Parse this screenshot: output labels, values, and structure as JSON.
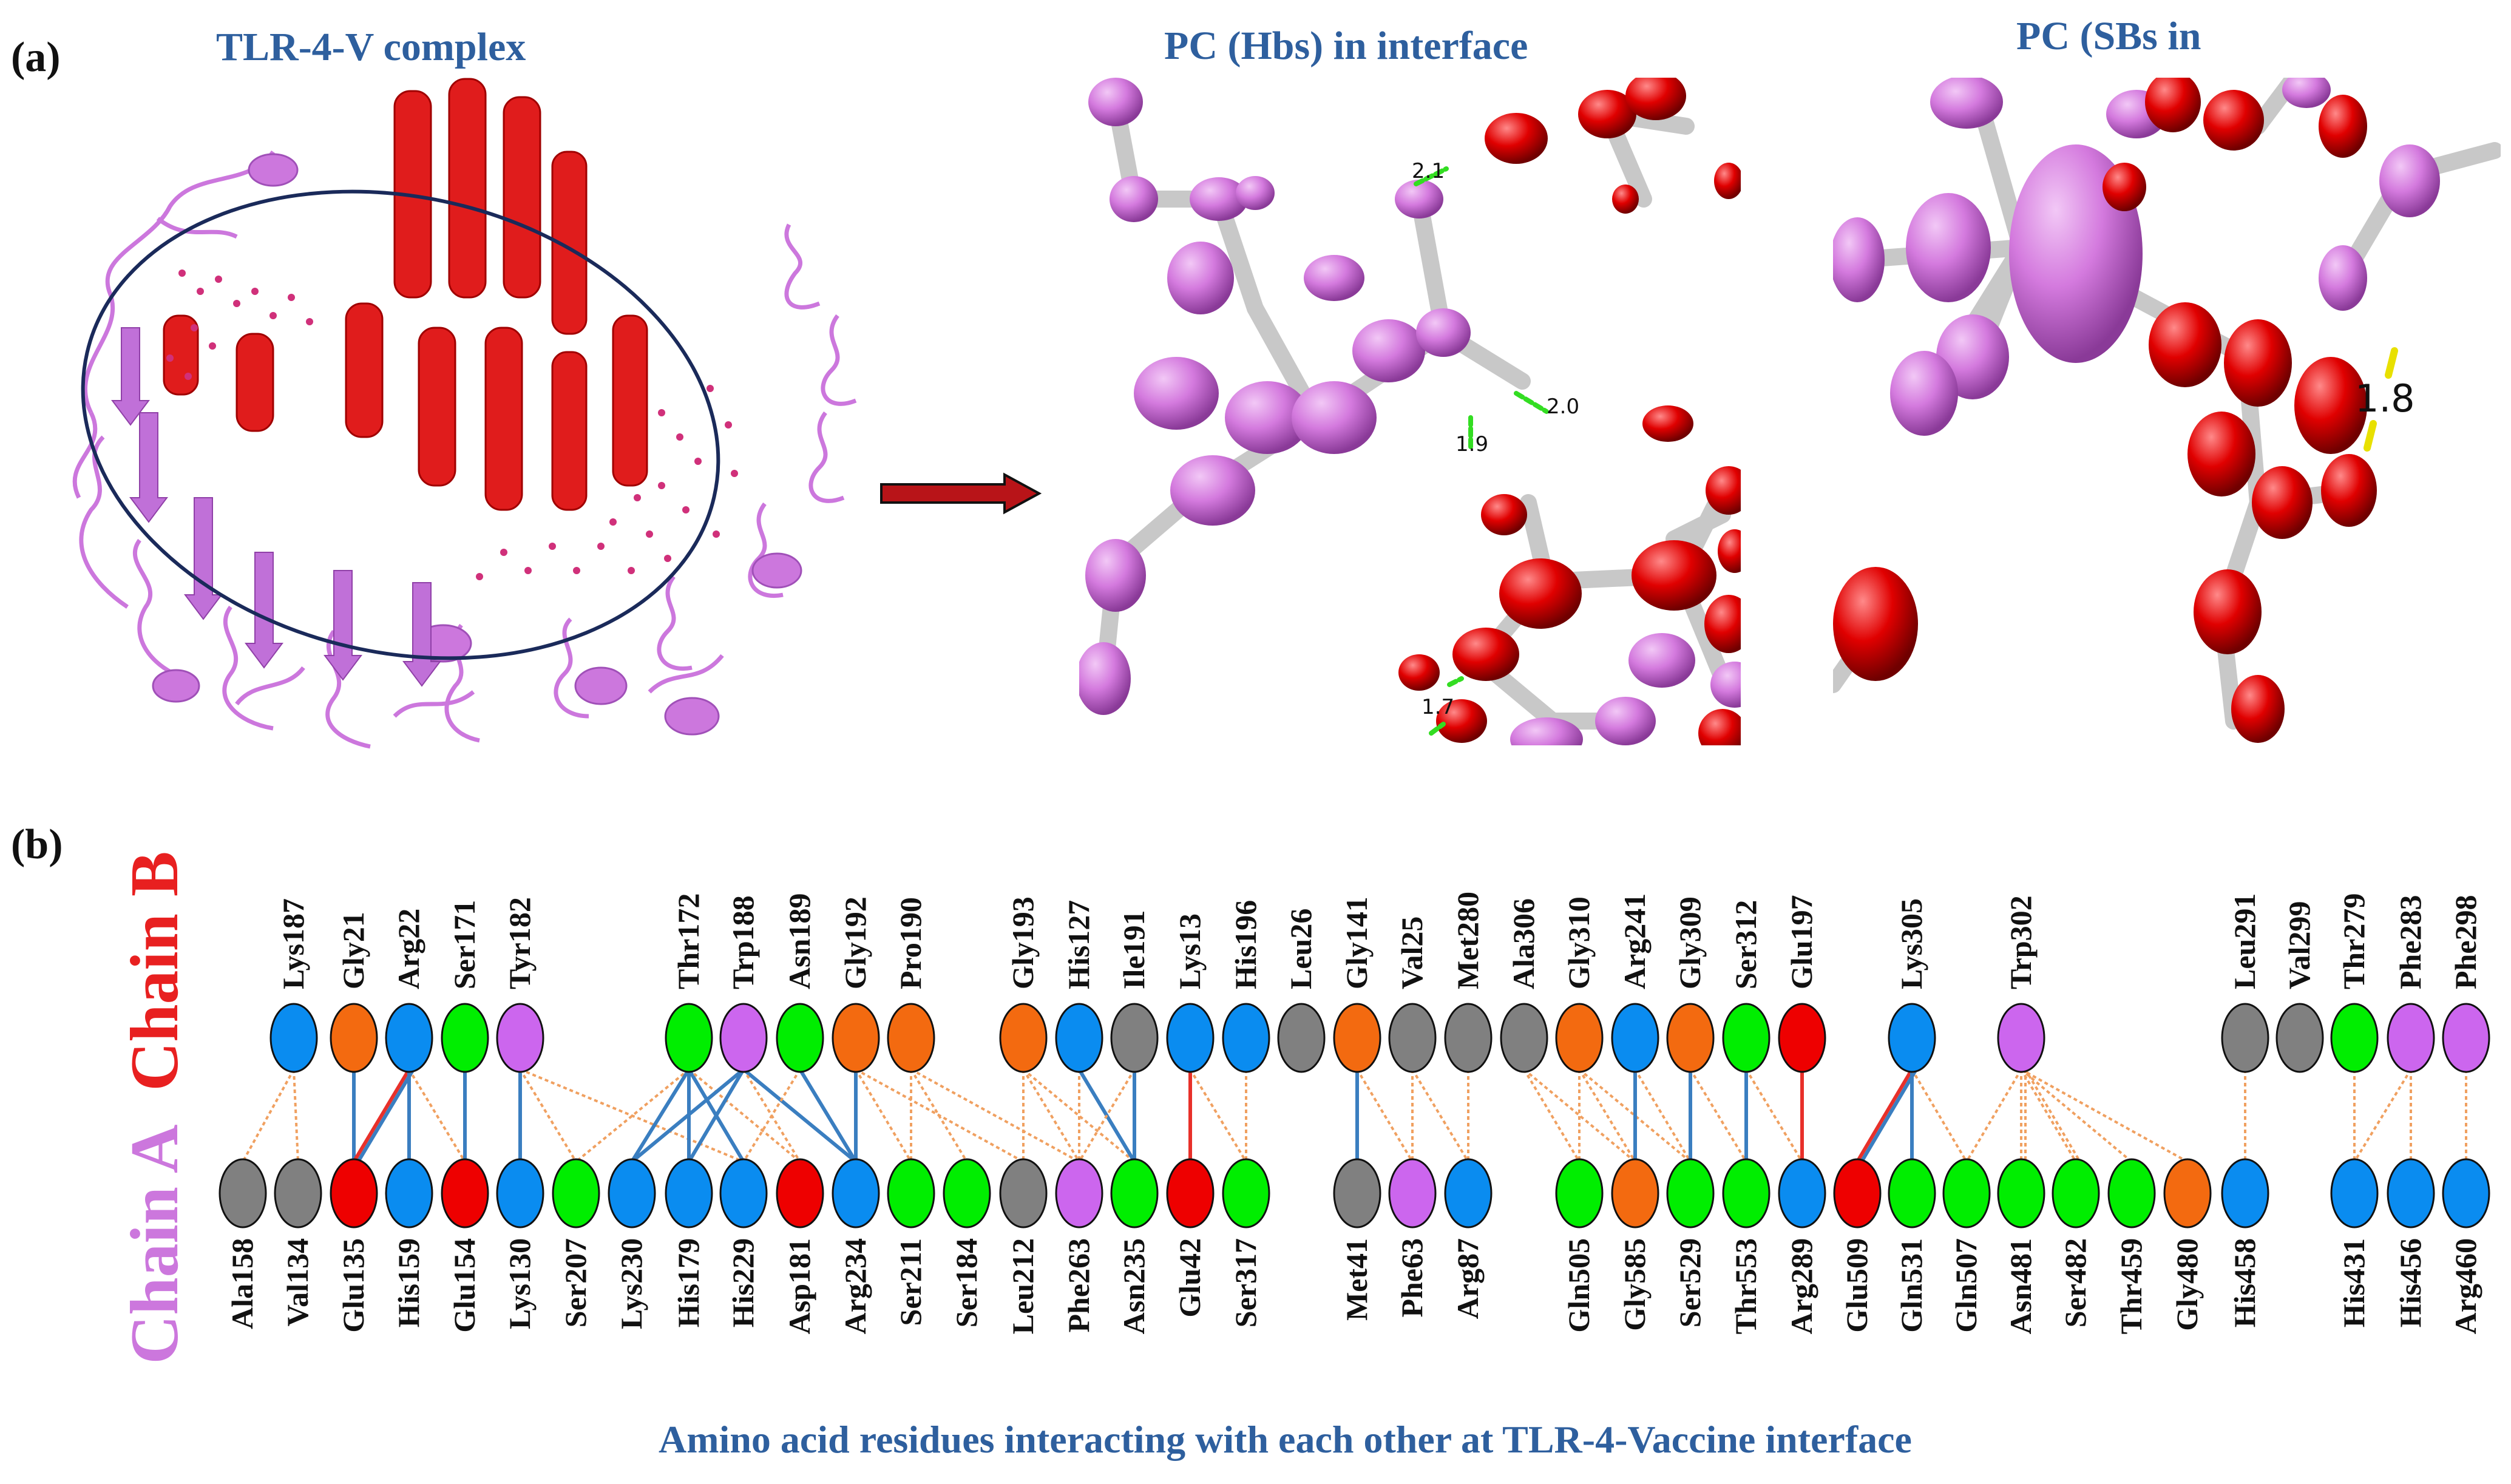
{
  "panel_a": {
    "letter": "(a)",
    "complex_title": "TLR-4-V complex",
    "hbs_title": "PC (Hbs) in interface",
    "sbs_title": "PC (SBs in",
    "hbs_distances": [
      "2.1",
      "2.0",
      "1.9",
      "1.7"
    ],
    "sbs_distance": "1.8"
  },
  "panel_b": {
    "letter": "(b)",
    "chain_b_label": "Chain B",
    "chain_a_label": "Chain A",
    "caption": "Amino acid residues interacting with each other  at TLR-4-Vaccine interface",
    "colors": {
      "chain_b_text": "#e82020",
      "chain_a_text": "#cc77dd",
      "blue": "#0a8cf0",
      "orange": "#f36a10",
      "green": "#00ee00",
      "purple": "#cc66ee",
      "gray": "#808080",
      "red": "#ee0000",
      "salt_bridge": "#e8302a",
      "h_bond": "#3a7ec0",
      "contact": "#f0a060"
    },
    "chain_b": [
      {
        "name": "Lys187",
        "color": "blue"
      },
      {
        "name": "Gly21",
        "color": "orange"
      },
      {
        "name": "Arg22",
        "color": "blue"
      },
      {
        "name": "Ser171",
        "color": "green"
      },
      {
        "name": "Tyr182",
        "color": "purple"
      },
      {
        "name": "Thr172",
        "color": "green"
      },
      {
        "name": "Trp188",
        "color": "purple"
      },
      {
        "name": "Asn189",
        "color": "green"
      },
      {
        "name": "Gly192",
        "color": "orange"
      },
      {
        "name": "Pro190",
        "color": "orange"
      },
      {
        "name": "Gly193",
        "color": "orange"
      },
      {
        "name": "His127",
        "color": "blue"
      },
      {
        "name": "Ile191",
        "color": "gray"
      },
      {
        "name": "Lys13",
        "color": "blue"
      },
      {
        "name": "His196",
        "color": "blue"
      },
      {
        "name": "Leu26",
        "color": "gray"
      },
      {
        "name": "Gly141",
        "color": "orange"
      },
      {
        "name": "Val25",
        "color": "gray"
      },
      {
        "name": "Met280",
        "color": "gray"
      },
      {
        "name": "Ala306",
        "color": "gray"
      },
      {
        "name": "Gly310",
        "color": "orange"
      },
      {
        "name": "Arg241",
        "color": "blue"
      },
      {
        "name": "Gly309",
        "color": "orange"
      },
      {
        "name": "Ser312",
        "color": "green"
      },
      {
        "name": "Glu197",
        "color": "red"
      },
      {
        "name": "Lys305",
        "color": "blue"
      },
      {
        "name": "Trp302",
        "color": "purple"
      },
      {
        "name": "Leu291",
        "color": "gray"
      },
      {
        "name": "Val299",
        "color": "gray"
      },
      {
        "name": "Thr279",
        "color": "green"
      },
      {
        "name": "Phe283",
        "color": "purple"
      },
      {
        "name": "Phe298",
        "color": "purple"
      }
    ],
    "chain_a": [
      {
        "name": "Ala158",
        "color": "gray"
      },
      {
        "name": "Val134",
        "color": "gray"
      },
      {
        "name": "Glu135",
        "color": "red"
      },
      {
        "name": "His159",
        "color": "blue"
      },
      {
        "name": "Glu154",
        "color": "red"
      },
      {
        "name": "Lys130",
        "color": "blue"
      },
      {
        "name": "Ser207",
        "color": "green"
      },
      {
        "name": "Lys230",
        "color": "blue"
      },
      {
        "name": "His179",
        "color": "blue"
      },
      {
        "name": "His229",
        "color": "blue"
      },
      {
        "name": "Asp181",
        "color": "red"
      },
      {
        "name": "Arg234",
        "color": "blue"
      },
      {
        "name": "Ser211",
        "color": "green"
      },
      {
        "name": "Ser184",
        "color": "green"
      },
      {
        "name": "Leu212",
        "color": "gray"
      },
      {
        "name": "Phe263",
        "color": "purple"
      },
      {
        "name": "Asn235",
        "color": "green"
      },
      {
        "name": "Glu42",
        "color": "red"
      },
      {
        "name": "Ser317",
        "color": "green"
      },
      {
        "name": "Met41",
        "color": "gray"
      },
      {
        "name": "Phe63",
        "color": "purple"
      },
      {
        "name": "Arg87",
        "color": "blue"
      },
      {
        "name": "Gln505",
        "color": "green"
      },
      {
        "name": "Gly585",
        "color": "orange"
      },
      {
        "name": "Ser529",
        "color": "green"
      },
      {
        "name": "Thr553",
        "color": "green"
      },
      {
        "name": "Arg289",
        "color": "blue"
      },
      {
        "name": "Glu509",
        "color": "red"
      },
      {
        "name": "Gln531",
        "color": "green"
      },
      {
        "name": "Gln507",
        "color": "green"
      },
      {
        "name": "Asn481",
        "color": "green"
      },
      {
        "name": "Ser482",
        "color": "green"
      },
      {
        "name": "Thr459",
        "color": "green"
      },
      {
        "name": "Gly480",
        "color": "orange"
      },
      {
        "name": "His458",
        "color": "blue"
      },
      {
        "name": "His431",
        "color": "blue"
      },
      {
        "name": "His456",
        "color": "blue"
      },
      {
        "name": "Arg460",
        "color": "blue"
      }
    ],
    "interactions": [
      {
        "b": 0,
        "a": 1,
        "type": "contact"
      },
      {
        "b": 0,
        "a": 0,
        "type": "contact"
      },
      {
        "b": 1,
        "a": 2,
        "type": "h_bond"
      },
      {
        "b": 2,
        "a": 2,
        "type": "salt_bridge"
      },
      {
        "b": 2,
        "a": 2,
        "type": "h_bond"
      },
      {
        "b": 2,
        "a": 3,
        "type": "h_bond"
      },
      {
        "b": 2,
        "a": 4,
        "type": "contact"
      },
      {
        "b": 3,
        "a": 4,
        "type": "h_bond"
      },
      {
        "b": 4,
        "a": 5,
        "type": "h_bond"
      },
      {
        "b": 4,
        "a": 6,
        "type": "contact"
      },
      {
        "b": 4,
        "a": 9,
        "type": "contact"
      },
      {
        "b": 5,
        "a": 6,
        "type": "contact"
      },
      {
        "b": 5,
        "a": 7,
        "type": "h_bond"
      },
      {
        "b": 5,
        "a": 8,
        "type": "h_bond"
      },
      {
        "b": 5,
        "a": 9,
        "type": "h_bond"
      },
      {
        "b": 5,
        "a": 10,
        "type": "contact"
      },
      {
        "b": 6,
        "a": 8,
        "type": "h_bond"
      },
      {
        "b": 6,
        "a": 7,
        "type": "h_bond"
      },
      {
        "b": 6,
        "a": 11,
        "type": "h_bond"
      },
      {
        "b": 6,
        "a": 10,
        "type": "contact"
      },
      {
        "b": 7,
        "a": 11,
        "type": "h_bond"
      },
      {
        "b": 7,
        "a": 9,
        "type": "contact"
      },
      {
        "b": 8,
        "a": 11,
        "type": "h_bond"
      },
      {
        "b": 8,
        "a": 12,
        "type": "contact"
      },
      {
        "b": 8,
        "a": 14,
        "type": "contact"
      },
      {
        "b": 9,
        "a": 12,
        "type": "contact"
      },
      {
        "b": 9,
        "a": 13,
        "type": "contact"
      },
      {
        "b": 9,
        "a": 15,
        "type": "contact"
      },
      {
        "b": 10,
        "a": 14,
        "type": "contact"
      },
      {
        "b": 10,
        "a": 15,
        "type": "contact"
      },
      {
        "b": 10,
        "a": 16,
        "type": "contact"
      },
      {
        "b": 11,
        "a": 15,
        "type": "contact"
      },
      {
        "b": 11,
        "a": 16,
        "type": "h_bond"
      },
      {
        "b": 12,
        "a": 16,
        "type": "h_bond"
      },
      {
        "b": 12,
        "a": 15,
        "type": "contact"
      },
      {
        "b": 13,
        "a": 17,
        "type": "salt_bridge"
      },
      {
        "b": 13,
        "a": 18,
        "type": "contact"
      },
      {
        "b": 14,
        "a": 18,
        "type": "contact"
      },
      {
        "b": 16,
        "a": 19,
        "type": "h_bond"
      },
      {
        "b": 16,
        "a": 20,
        "type": "contact"
      },
      {
        "b": 17,
        "a": 20,
        "type": "contact"
      },
      {
        "b": 17,
        "a": 21,
        "type": "contact"
      },
      {
        "b": 18,
        "a": 21,
        "type": "contact"
      },
      {
        "b": 19,
        "a": 22,
        "type": "contact"
      },
      {
        "b": 19,
        "a": 23,
        "type": "contact"
      },
      {
        "b": 20,
        "a": 22,
        "type": "contact"
      },
      {
        "b": 20,
        "a": 23,
        "type": "contact"
      },
      {
        "b": 20,
        "a": 24,
        "type": "contact"
      },
      {
        "b": 21,
        "a": 23,
        "type": "h_bond"
      },
      {
        "b": 21,
        "a": 24,
        "type": "contact"
      },
      {
        "b": 22,
        "a": 24,
        "type": "h_bond"
      },
      {
        "b": 22,
        "a": 25,
        "type": "contact"
      },
      {
        "b": 23,
        "a": 25,
        "type": "h_bond"
      },
      {
        "b": 23,
        "a": 26,
        "type": "contact"
      },
      {
        "b": 24,
        "a": 26,
        "type": "salt_bridge"
      },
      {
        "b": 25,
        "a": 27,
        "type": "salt_bridge"
      },
      {
        "b": 25,
        "a": 27,
        "type": "h_bond"
      },
      {
        "b": 25,
        "a": 28,
        "type": "h_bond"
      },
      {
        "b": 25,
        "a": 29,
        "type": "contact"
      },
      {
        "b": 26,
        "a": 29,
        "type": "contact"
      },
      {
        "b": 26,
        "a": 30,
        "type": "contact"
      },
      {
        "b": 26,
        "a": 31,
        "type": "contact"
      },
      {
        "b": 26,
        "a": 32,
        "type": "contact"
      },
      {
        "b": 26,
        "a": 33,
        "type": "contact"
      },
      {
        "b": 26,
        "a": 30,
        "type": "contact"
      },
      {
        "b": 26,
        "a": 31,
        "type": "contact"
      },
      {
        "b": 27,
        "a": 34,
        "type": "contact"
      },
      {
        "b": 29,
        "a": 35,
        "type": "contact"
      },
      {
        "b": 30,
        "a": 36,
        "type": "contact"
      },
      {
        "b": 30,
        "a": 35,
        "type": "contact"
      },
      {
        "b": 31,
        "a": 37,
        "type": "contact"
      }
    ]
  }
}
